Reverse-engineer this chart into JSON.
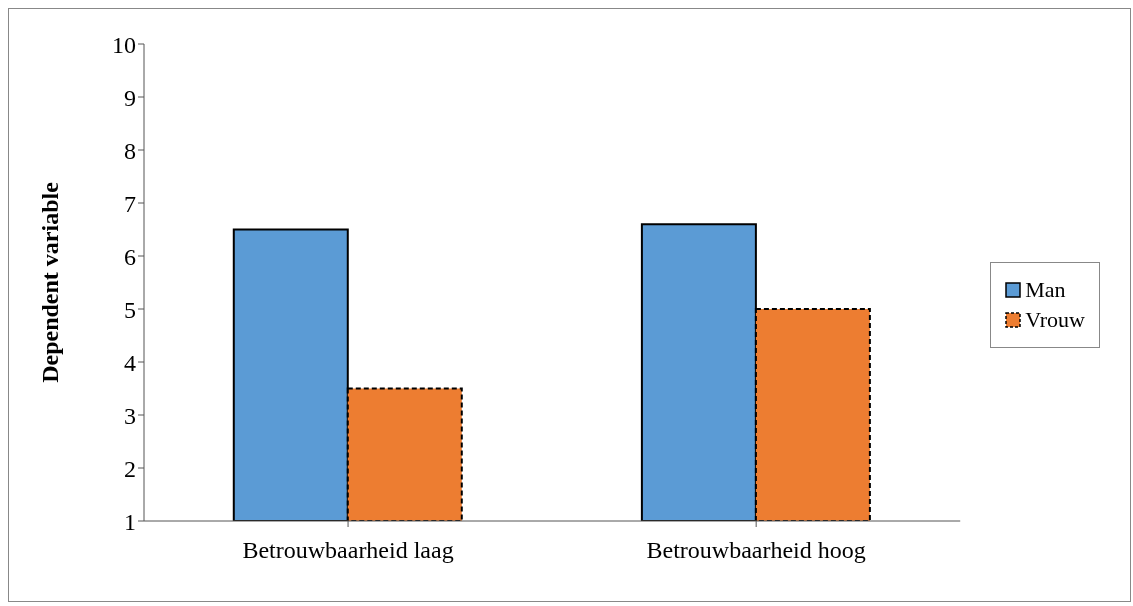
{
  "chart_data": {
    "type": "bar",
    "ylabel": "Dependent variable",
    "categories": [
      "Betrouwbaarheid laag",
      "Betrouwbaarheid hoog"
    ],
    "series": [
      {
        "name": "Man",
        "color": "#5b9bd5",
        "values": [
          6.5,
          6.6
        ],
        "line_style": "solid"
      },
      {
        "name": "Vrouw",
        "color": "#ed7d31",
        "values": [
          3.5,
          5.0
        ],
        "line_style": "dashed"
      }
    ],
    "ylim": [
      1,
      10
    ],
    "yticks": [
      1,
      2,
      3,
      4,
      5,
      6,
      7,
      8,
      9,
      10
    ],
    "grid": false,
    "legend": "right"
  }
}
